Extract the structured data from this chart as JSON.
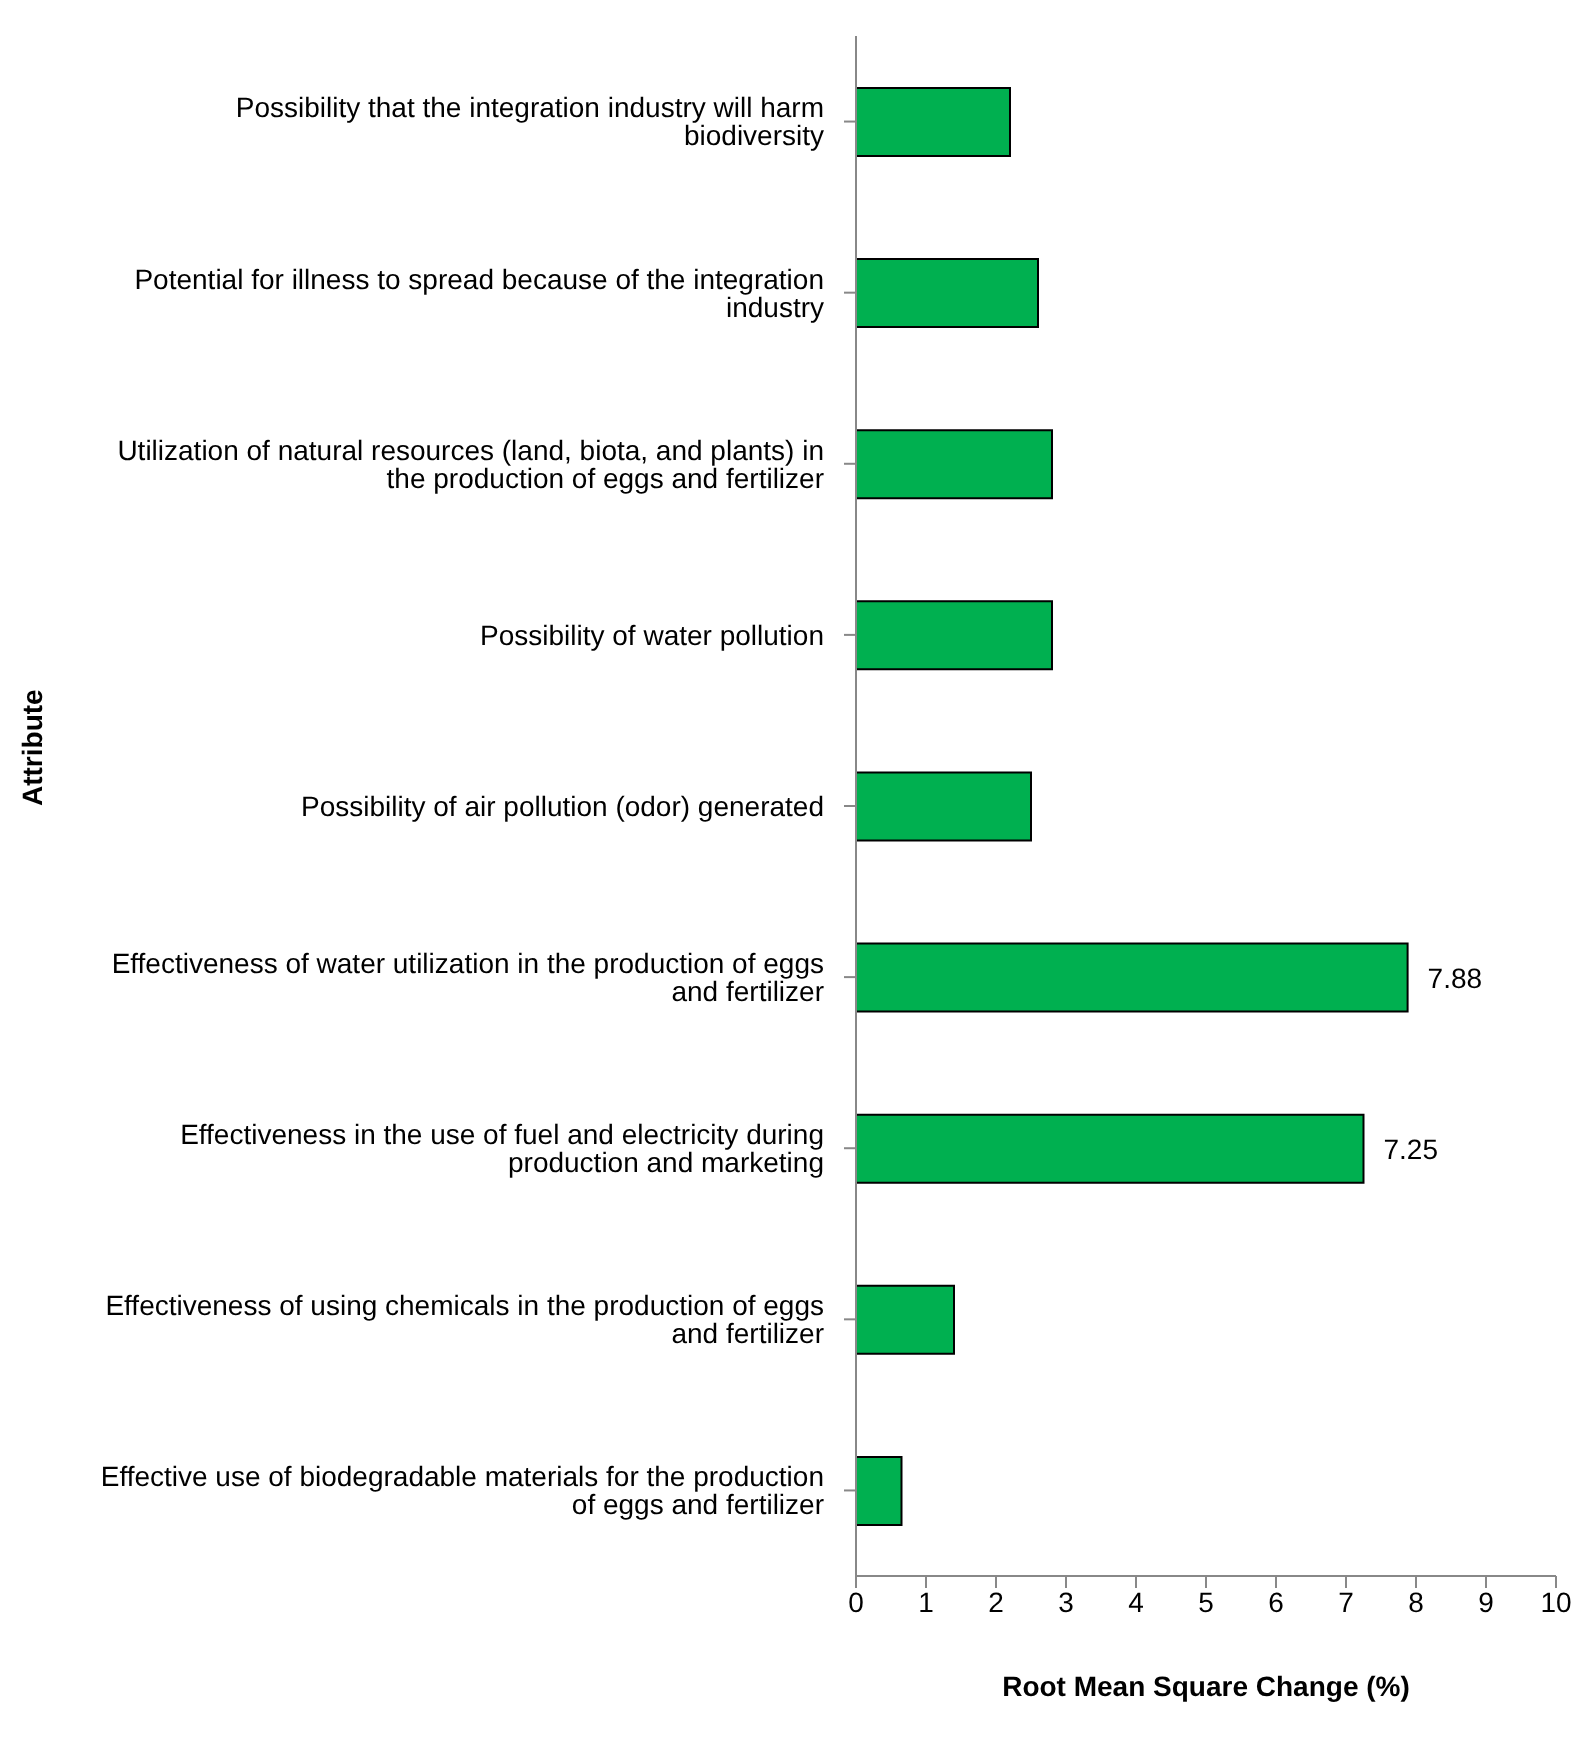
{
  "chart_data": {
    "type": "bar",
    "orientation": "horizontal",
    "xlabel": "Root Mean Square Change (%)",
    "ylabel": "Attribute",
    "categories": [
      "Possibility that the integration industry will harm biodiversity",
      "Potential for illness to spread because of the integration industry",
      "Utilization of natural resources (land, biota, and plants) in the production of eggs and fertilizer",
      "Possibility of water pollution",
      "Possibility of air pollution (odor) generated",
      "Effectiveness of water utilization in the production of eggs and fertilizer",
      "Effectiveness in the use of fuel and electricity during production and marketing",
      "Effectiveness of using chemicals in the production of eggs and fertilizer",
      "Effective use of biodegradable materials for the production of eggs and fertilizer"
    ],
    "values": [
      2.2,
      2.6,
      2.8,
      2.8,
      2.5,
      7.88,
      7.25,
      1.4,
      0.65
    ],
    "value_labels": [
      null,
      null,
      null,
      null,
      null,
      "7.88",
      "7.25",
      null,
      null
    ],
    "color": "#00b050",
    "xlim": [
      0,
      10
    ],
    "xticks": [
      0,
      1,
      2,
      3,
      4,
      5,
      6,
      7,
      8,
      9,
      10
    ],
    "grid": false
  }
}
